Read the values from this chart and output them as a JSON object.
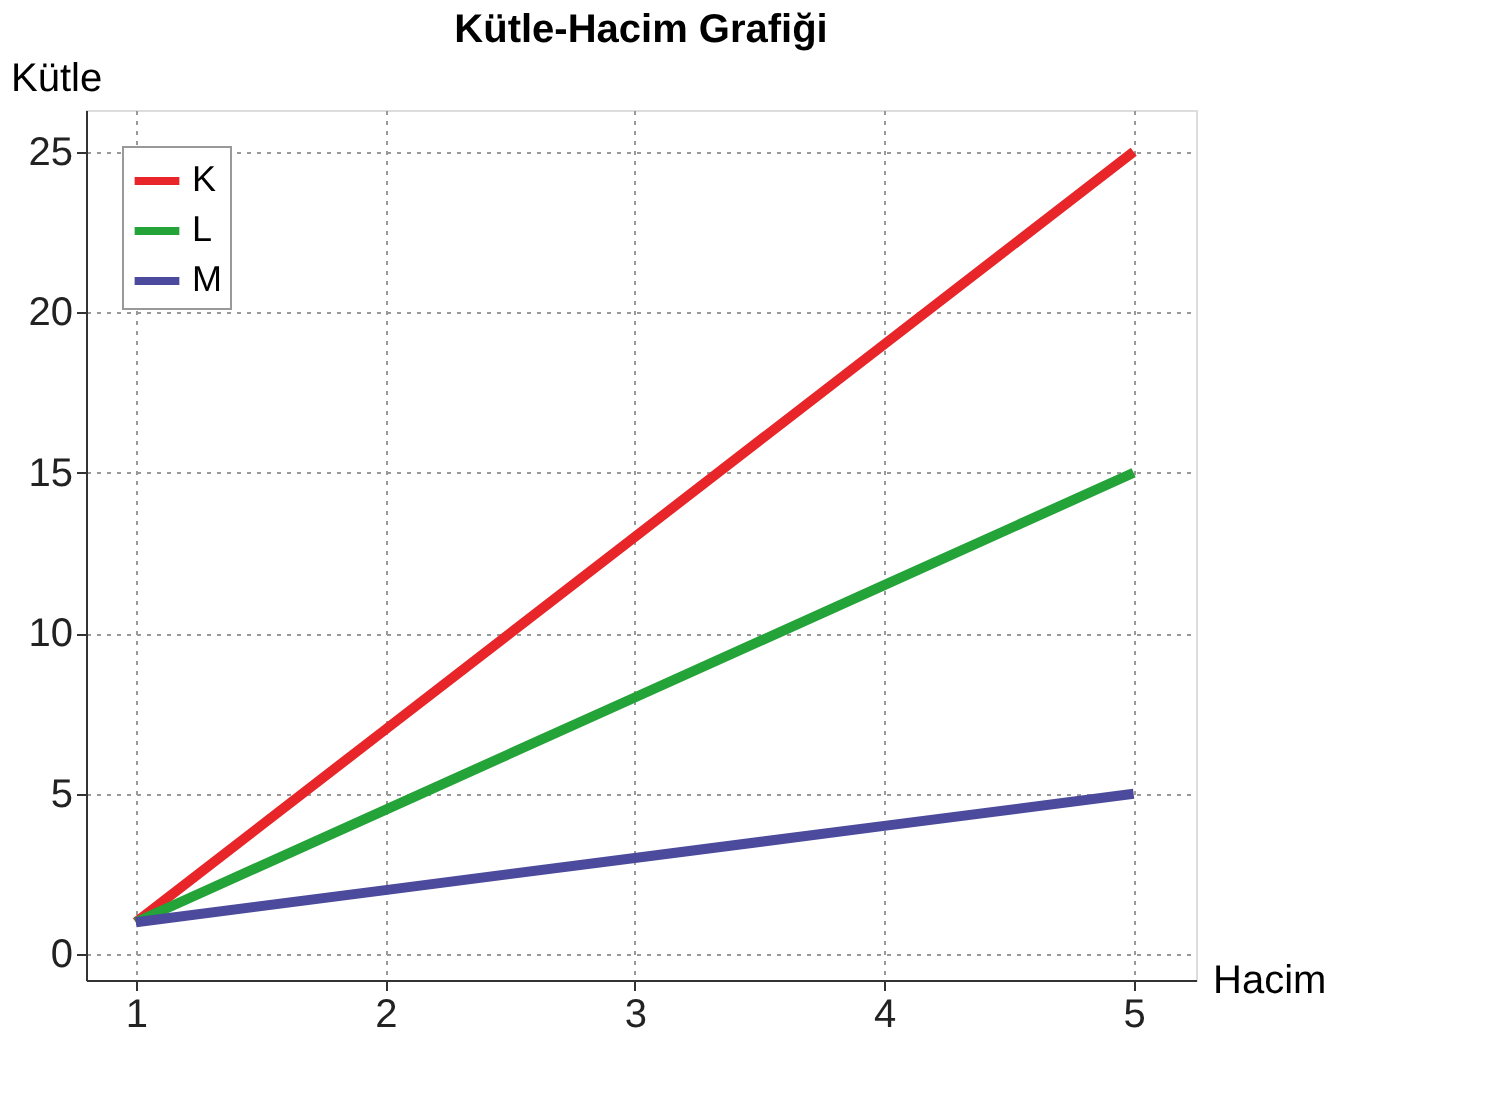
{
  "chart_data": {
    "type": "line",
    "title": "Kütle-Hacim Grafiği",
    "xlabel": "Hacim",
    "ylabel": "Kütle",
    "x": [
      1,
      2,
      3,
      4,
      5
    ],
    "series": [
      {
        "name": "K",
        "color": "#e8262a",
        "values": [
          1,
          7,
          13,
          19,
          25
        ]
      },
      {
        "name": "L",
        "color": "#23a338",
        "values": [
          1,
          4.5,
          8,
          11.5,
          15
        ]
      },
      {
        "name": "M",
        "color": "#4b4a9c",
        "values": [
          1,
          2,
          3,
          4,
          5
        ]
      }
    ],
    "xlim": [
      0.8,
      5.25
    ],
    "ylim": [
      -0.8,
      26.3
    ],
    "xticks": [
      1,
      2,
      3,
      4,
      5
    ],
    "yticks": [
      0,
      5,
      10,
      15,
      20,
      25
    ],
    "grid": true,
    "legend": "top left",
    "marker": "none",
    "line_style": "solid"
  }
}
